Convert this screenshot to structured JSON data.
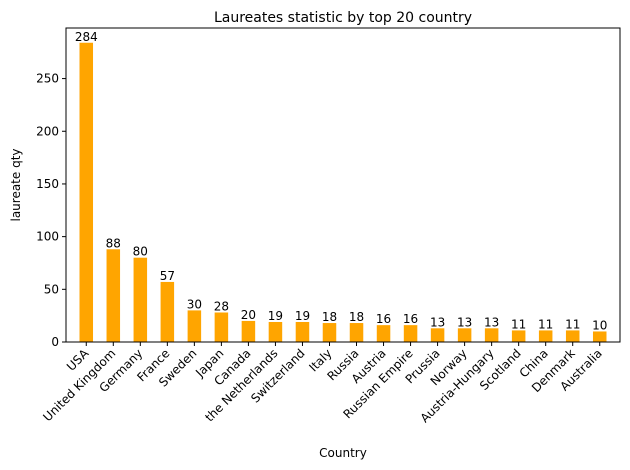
{
  "chart_data": {
    "type": "bar",
    "title": "Laureates statistic by top 20 country",
    "xlabel": "Country",
    "ylabel": "laureate qty",
    "categories": [
      "USA",
      "United Kingdom",
      "Germany",
      "France",
      "Sweden",
      "Japan",
      "Canada",
      "the Netherlands",
      "Switzerland",
      "Italy",
      "Russia",
      "Austria",
      "Russian Empire",
      "Prussia",
      "Norway",
      "Austria-Hungary",
      "Scotland",
      "China",
      "Denmark",
      "Australia"
    ],
    "values": [
      284,
      88,
      80,
      57,
      30,
      28,
      20,
      19,
      19,
      18,
      18,
      16,
      16,
      13,
      13,
      13,
      11,
      11,
      11,
      10
    ],
    "ylim": [
      0,
      298
    ],
    "yticks": [
      0,
      50,
      100,
      150,
      200,
      250
    ],
    "bar_color": "#ffa500",
    "grid": false,
    "legend": "none"
  }
}
